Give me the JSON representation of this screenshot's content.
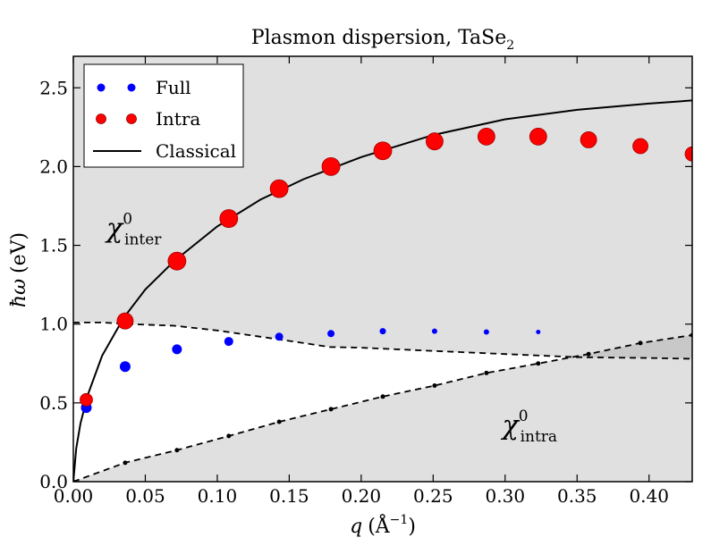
{
  "chart_data": {
    "type": "scatter",
    "title_main": "Plasmon dispersion, TaSe",
    "title_sub": "2",
    "ylabel_main": "ħω",
    "ylabel_unit": "(eV)",
    "xlabel_var": "q",
    "xlabel_unit_open": "(Å",
    "xlabel_unit_exp": "−1",
    "xlabel_unit_close": ")",
    "xlim": [
      0.0,
      0.43
    ],
    "ylim": [
      0.0,
      2.7
    ],
    "x_ticks": [
      0.0,
      0.05,
      0.1,
      0.15,
      0.2,
      0.25,
      0.3,
      0.35,
      0.4
    ],
    "x_tick_labels": [
      "0.00",
      "0.05",
      "0.10",
      "0.15",
      "0.20",
      "0.25",
      "0.30",
      "0.35",
      "0.40"
    ],
    "y_ticks": [
      0.0,
      0.5,
      1.0,
      1.5,
      2.0,
      2.5
    ],
    "y_tick_labels": [
      "0.0",
      "0.5",
      "1.0",
      "1.5",
      "2.0",
      "2.5"
    ],
    "series": [
      {
        "name": "Full",
        "color": "#0000ff",
        "x": [
          0.009,
          0.036,
          0.072,
          0.108,
          0.143,
          0.179,
          0.215,
          0.251,
          0.287,
          0.323
        ],
        "y": [
          0.47,
          0.73,
          0.84,
          0.89,
          0.92,
          0.94,
          0.955,
          0.955,
          0.95,
          0.95
        ],
        "sizes": [
          6,
          6,
          5.5,
          5,
          4.5,
          4,
          3.5,
          3,
          3,
          2.5
        ]
      },
      {
        "name": "Intra",
        "color": "#ff0000",
        "x": [
          0.009,
          0.036,
          0.072,
          0.108,
          0.143,
          0.179,
          0.215,
          0.251,
          0.287,
          0.323,
          0.358,
          0.394,
          0.43
        ],
        "y": [
          0.52,
          1.02,
          1.4,
          1.67,
          1.86,
          2.0,
          2.1,
          2.16,
          2.19,
          2.19,
          2.17,
          2.13,
          2.08
        ],
        "sizes": [
          7,
          9,
          10,
          10,
          10,
          10,
          10,
          9.5,
          9.5,
          9.5,
          9,
          8.5,
          8
        ]
      },
      {
        "name": "Classical",
        "color": "#000000",
        "x": [
          0.0,
          0.002,
          0.005,
          0.01,
          0.02,
          0.035,
          0.05,
          0.07,
          0.1,
          0.13,
          0.16,
          0.2,
          0.25,
          0.3,
          0.35,
          0.4,
          0.43
        ],
        "y": [
          0.0,
          0.21,
          0.37,
          0.55,
          0.8,
          1.04,
          1.22,
          1.4,
          1.62,
          1.79,
          1.92,
          2.06,
          2.2,
          2.3,
          2.36,
          2.4,
          2.42
        ]
      }
    ],
    "boundaries": {
      "inter_edge": {
        "x": [
          0.0,
          0.02,
          0.04,
          0.07,
          0.1,
          0.13,
          0.16,
          0.178,
          0.2,
          0.25,
          0.3,
          0.35,
          0.4,
          0.43
        ],
        "y": [
          1.01,
          1.01,
          1.0,
          0.99,
          0.96,
          0.92,
          0.88,
          0.855,
          0.85,
          0.83,
          0.81,
          0.79,
          0.785,
          0.78
        ]
      },
      "intra_edge": {
        "x": [
          0.0,
          0.036,
          0.072,
          0.108,
          0.143,
          0.179,
          0.215,
          0.251,
          0.287,
          0.323,
          0.358,
          0.394,
          0.43
        ],
        "y": [
          0.0,
          0.12,
          0.2,
          0.29,
          0.38,
          0.46,
          0.54,
          0.61,
          0.69,
          0.75,
          0.81,
          0.88,
          0.93
        ]
      }
    },
    "legend": {
      "placement": "top-left",
      "entries": [
        "Full",
        "Intra",
        "Classical"
      ]
    },
    "annotations": {
      "inter": {
        "base": "χ",
        "sup": "0",
        "sub": "inter",
        "x": 0.023,
        "y": 1.55
      },
      "intra": {
        "base": "χ",
        "sup": "0",
        "sub": "intra",
        "x": 0.298,
        "y": 0.3
      }
    },
    "colors": {
      "background": "#e0e0e0",
      "continuum_free": "#ffffff",
      "overlap": "#c8c8c8"
    }
  }
}
